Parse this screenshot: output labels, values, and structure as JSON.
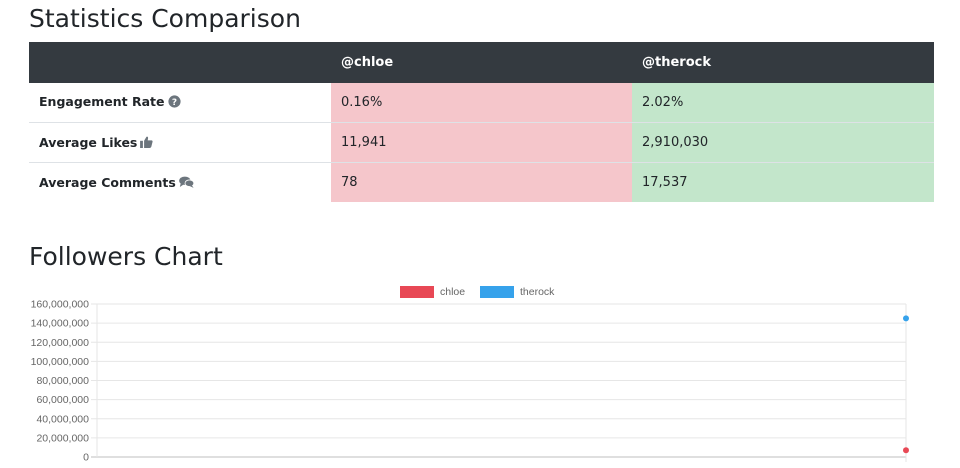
{
  "stats": {
    "title": "Statistics Comparison",
    "header": [
      "",
      "@chloe",
      "@therock"
    ],
    "rows": [
      {
        "label": "Engagement Rate",
        "icon": "question-circle-icon",
        "values": [
          "0.16%",
          "2.02%"
        ]
      },
      {
        "label": "Average Likes",
        "icon": "thumbs-up-icon",
        "values": [
          "11,941",
          "2,910,030"
        ]
      },
      {
        "label": "Average Comments",
        "icon": "comments-icon",
        "values": [
          "78",
          "17,537"
        ]
      }
    ],
    "colors": {
      "low": "#f5c6cb",
      "high": "#c3e6cb",
      "header": "#343a40"
    }
  },
  "chart": {
    "title": "Followers Chart"
  },
  "chart_data": {
    "type": "line",
    "ylim": [
      0,
      160000000
    ],
    "yticks": [
      "160,000,000",
      "140,000,000",
      "120,000,000",
      "100,000,000",
      "80,000,000",
      "60,000,000",
      "40,000,000",
      "20,000,000",
      "0"
    ],
    "legend_position": "top-center",
    "grid": true,
    "series": [
      {
        "name": "chloe",
        "color": "#e84855",
        "points": [
          {
            "x": 1,
            "y": 7000000
          }
        ]
      },
      {
        "name": "therock",
        "color": "#36a2eb",
        "points": [
          {
            "x": 1,
            "y": 145000000
          }
        ]
      }
    ]
  }
}
